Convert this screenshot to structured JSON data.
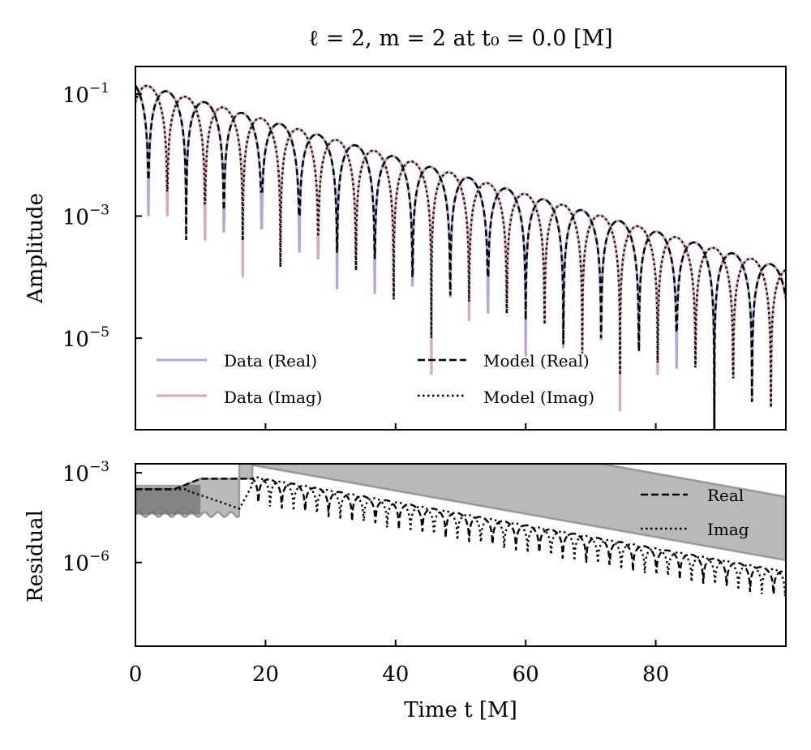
{
  "chart_data": [
    {
      "type": "line",
      "panel": "top",
      "title": "ℓ = 2, m = 2 at t₀ = 0.0 [M]",
      "xlabel": "",
      "ylabel": "Amplitude",
      "yscale": "log",
      "xlim": [
        0,
        100
      ],
      "ylim_log10": [
        -6.5,
        -0.55
      ],
      "yticks": [
        {
          "base": "10",
          "exp": "−1",
          "value_log10": -1
        },
        {
          "base": "10",
          "exp": "−3",
          "value_log10": -3
        },
        {
          "base": "10",
          "exp": "−5",
          "value_log10": -5
        }
      ],
      "xticks": [
        0,
        20,
        40,
        60,
        80
      ],
      "model": {
        "amplitude_at_t0": 0.155,
        "decay_log10_per_M": -0.0305,
        "period_M": 11.6,
        "real_first_zero_M": 2.0,
        "imag_first_zero_M": -0.9
      },
      "notch_depths_log10": {
        "real": [
          -3.0,
          -4.9,
          -3.5,
          -3.2,
          -3.6,
          -4.2,
          -4.3,
          -4.6,
          -4.9,
          -4.6,
          -5.3,
          -5.7,
          -5.6,
          -5.9,
          -5.5
        ],
        "imag": [
          -2.7,
          -3.2,
          -3.4,
          -4.0,
          -4.5,
          -3.9,
          -5.0,
          -5.3,
          -5.6,
          -5.0,
          -6.3,
          -5.8,
          -6.0,
          -6.2,
          -6.0
        ]
      },
      "series": [
        {
          "name": "Data (Real)",
          "color": "#b8a3dc",
          "style": "solid"
        },
        {
          "name": "Data (Imag)",
          "color": "#dba8b8",
          "style": "solid"
        },
        {
          "name": "Model (Real)",
          "color": "#000000",
          "style": "dashed"
        },
        {
          "name": "Model (Imag)",
          "color": "#000000",
          "style": "dotted"
        }
      ],
      "legend": {
        "placement": "lower-left",
        "entries": [
          {
            "label": "Data (Real)",
            "color": "#b8a3dc",
            "style": "solid"
          },
          {
            "label": "Data (Imag)",
            "color": "#dba8b8",
            "style": "solid"
          },
          {
            "label": "Model (Real)",
            "color": "#000000",
            "style": "dashed"
          },
          {
            "label": "Model (Imag)",
            "color": "#000000",
            "style": "dotted"
          }
        ]
      }
    },
    {
      "type": "line",
      "panel": "bottom",
      "xlabel": "Time t [M]",
      "ylabel": "Residual",
      "yscale": "log",
      "xlim": [
        0,
        100
      ],
      "ylim_log10": [
        -8.8,
        -2.7
      ],
      "yticks": [
        {
          "base": "10",
          "exp": "−3",
          "value_log10": -3
        },
        {
          "base": "10",
          "exp": "−6",
          "value_log10": -6
        }
      ],
      "xticks": [
        {
          "label": "0",
          "value": 0
        },
        {
          "label": "20",
          "value": 20
        },
        {
          "label": "40",
          "value": 40
        },
        {
          "label": "60",
          "value": 60
        },
        {
          "label": "80",
          "value": 80
        }
      ],
      "early_plateau": {
        "real_level_log10": -3.55,
        "imag_level_log10": -3.55,
        "real_rise_M": 6,
        "imag_rise_M": 17,
        "band_lower_log10": -4.4
      },
      "residual_envelope": {
        "peak_log10_at_20M": -3.2,
        "peak_log10_at_100M": -6.3,
        "notch_depth_log10": -2.5
      },
      "band_color": "#7f7f7f",
      "series": [
        {
          "name": "Real",
          "color": "#000000",
          "style": "dashed"
        },
        {
          "name": "Imag",
          "color": "#000000",
          "style": "dotted"
        }
      ],
      "legend": {
        "placement": "upper-right",
        "entries": [
          {
            "label": "Real",
            "style": "dashed"
          },
          {
            "label": "Imag",
            "style": "dotted"
          }
        ]
      }
    }
  ]
}
